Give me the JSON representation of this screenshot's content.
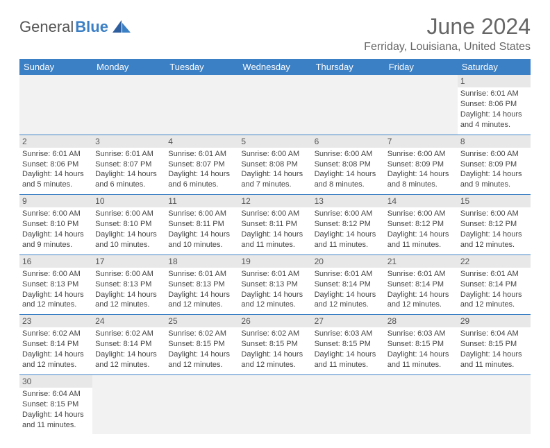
{
  "brand": {
    "name_part1": "General",
    "name_part2": "Blue"
  },
  "title": "June 2024",
  "location": "Ferriday, Louisiana, United States",
  "colors": {
    "header_bg": "#3b7fc4",
    "header_text": "#ffffff",
    "daynum_bg": "#e8e8e8",
    "cell_border": "#3b7fc4",
    "empty_bg": "#f2f2f2",
    "text": "#444444"
  },
  "day_names": [
    "Sunday",
    "Monday",
    "Tuesday",
    "Wednesday",
    "Thursday",
    "Friday",
    "Saturday"
  ],
  "weeks": [
    [
      null,
      null,
      null,
      null,
      null,
      null,
      {
        "n": "1",
        "sr": "Sunrise: 6:01 AM",
        "ss": "Sunset: 8:06 PM",
        "d1": "Daylight: 14 hours",
        "d2": "and 4 minutes."
      }
    ],
    [
      {
        "n": "2",
        "sr": "Sunrise: 6:01 AM",
        "ss": "Sunset: 8:06 PM",
        "d1": "Daylight: 14 hours",
        "d2": "and 5 minutes."
      },
      {
        "n": "3",
        "sr": "Sunrise: 6:01 AM",
        "ss": "Sunset: 8:07 PM",
        "d1": "Daylight: 14 hours",
        "d2": "and 6 minutes."
      },
      {
        "n": "4",
        "sr": "Sunrise: 6:01 AM",
        "ss": "Sunset: 8:07 PM",
        "d1": "Daylight: 14 hours",
        "d2": "and 6 minutes."
      },
      {
        "n": "5",
        "sr": "Sunrise: 6:00 AM",
        "ss": "Sunset: 8:08 PM",
        "d1": "Daylight: 14 hours",
        "d2": "and 7 minutes."
      },
      {
        "n": "6",
        "sr": "Sunrise: 6:00 AM",
        "ss": "Sunset: 8:08 PM",
        "d1": "Daylight: 14 hours",
        "d2": "and 8 minutes."
      },
      {
        "n": "7",
        "sr": "Sunrise: 6:00 AM",
        "ss": "Sunset: 8:09 PM",
        "d1": "Daylight: 14 hours",
        "d2": "and 8 minutes."
      },
      {
        "n": "8",
        "sr": "Sunrise: 6:00 AM",
        "ss": "Sunset: 8:09 PM",
        "d1": "Daylight: 14 hours",
        "d2": "and 9 minutes."
      }
    ],
    [
      {
        "n": "9",
        "sr": "Sunrise: 6:00 AM",
        "ss": "Sunset: 8:10 PM",
        "d1": "Daylight: 14 hours",
        "d2": "and 9 minutes."
      },
      {
        "n": "10",
        "sr": "Sunrise: 6:00 AM",
        "ss": "Sunset: 8:10 PM",
        "d1": "Daylight: 14 hours",
        "d2": "and 10 minutes."
      },
      {
        "n": "11",
        "sr": "Sunrise: 6:00 AM",
        "ss": "Sunset: 8:11 PM",
        "d1": "Daylight: 14 hours",
        "d2": "and 10 minutes."
      },
      {
        "n": "12",
        "sr": "Sunrise: 6:00 AM",
        "ss": "Sunset: 8:11 PM",
        "d1": "Daylight: 14 hours",
        "d2": "and 11 minutes."
      },
      {
        "n": "13",
        "sr": "Sunrise: 6:00 AM",
        "ss": "Sunset: 8:12 PM",
        "d1": "Daylight: 14 hours",
        "d2": "and 11 minutes."
      },
      {
        "n": "14",
        "sr": "Sunrise: 6:00 AM",
        "ss": "Sunset: 8:12 PM",
        "d1": "Daylight: 14 hours",
        "d2": "and 11 minutes."
      },
      {
        "n": "15",
        "sr": "Sunrise: 6:00 AM",
        "ss": "Sunset: 8:12 PM",
        "d1": "Daylight: 14 hours",
        "d2": "and 12 minutes."
      }
    ],
    [
      {
        "n": "16",
        "sr": "Sunrise: 6:00 AM",
        "ss": "Sunset: 8:13 PM",
        "d1": "Daylight: 14 hours",
        "d2": "and 12 minutes."
      },
      {
        "n": "17",
        "sr": "Sunrise: 6:00 AM",
        "ss": "Sunset: 8:13 PM",
        "d1": "Daylight: 14 hours",
        "d2": "and 12 minutes."
      },
      {
        "n": "18",
        "sr": "Sunrise: 6:01 AM",
        "ss": "Sunset: 8:13 PM",
        "d1": "Daylight: 14 hours",
        "d2": "and 12 minutes."
      },
      {
        "n": "19",
        "sr": "Sunrise: 6:01 AM",
        "ss": "Sunset: 8:13 PM",
        "d1": "Daylight: 14 hours",
        "d2": "and 12 minutes."
      },
      {
        "n": "20",
        "sr": "Sunrise: 6:01 AM",
        "ss": "Sunset: 8:14 PM",
        "d1": "Daylight: 14 hours",
        "d2": "and 12 minutes."
      },
      {
        "n": "21",
        "sr": "Sunrise: 6:01 AM",
        "ss": "Sunset: 8:14 PM",
        "d1": "Daylight: 14 hours",
        "d2": "and 12 minutes."
      },
      {
        "n": "22",
        "sr": "Sunrise: 6:01 AM",
        "ss": "Sunset: 8:14 PM",
        "d1": "Daylight: 14 hours",
        "d2": "and 12 minutes."
      }
    ],
    [
      {
        "n": "23",
        "sr": "Sunrise: 6:02 AM",
        "ss": "Sunset: 8:14 PM",
        "d1": "Daylight: 14 hours",
        "d2": "and 12 minutes."
      },
      {
        "n": "24",
        "sr": "Sunrise: 6:02 AM",
        "ss": "Sunset: 8:14 PM",
        "d1": "Daylight: 14 hours",
        "d2": "and 12 minutes."
      },
      {
        "n": "25",
        "sr": "Sunrise: 6:02 AM",
        "ss": "Sunset: 8:15 PM",
        "d1": "Daylight: 14 hours",
        "d2": "and 12 minutes."
      },
      {
        "n": "26",
        "sr": "Sunrise: 6:02 AM",
        "ss": "Sunset: 8:15 PM",
        "d1": "Daylight: 14 hours",
        "d2": "and 12 minutes."
      },
      {
        "n": "27",
        "sr": "Sunrise: 6:03 AM",
        "ss": "Sunset: 8:15 PM",
        "d1": "Daylight: 14 hours",
        "d2": "and 11 minutes."
      },
      {
        "n": "28",
        "sr": "Sunrise: 6:03 AM",
        "ss": "Sunset: 8:15 PM",
        "d1": "Daylight: 14 hours",
        "d2": "and 11 minutes."
      },
      {
        "n": "29",
        "sr": "Sunrise: 6:04 AM",
        "ss": "Sunset: 8:15 PM",
        "d1": "Daylight: 14 hours",
        "d2": "and 11 minutes."
      }
    ],
    [
      {
        "n": "30",
        "sr": "Sunrise: 6:04 AM",
        "ss": "Sunset: 8:15 PM",
        "d1": "Daylight: 14 hours",
        "d2": "and 11 minutes."
      },
      null,
      null,
      null,
      null,
      null,
      null
    ]
  ]
}
